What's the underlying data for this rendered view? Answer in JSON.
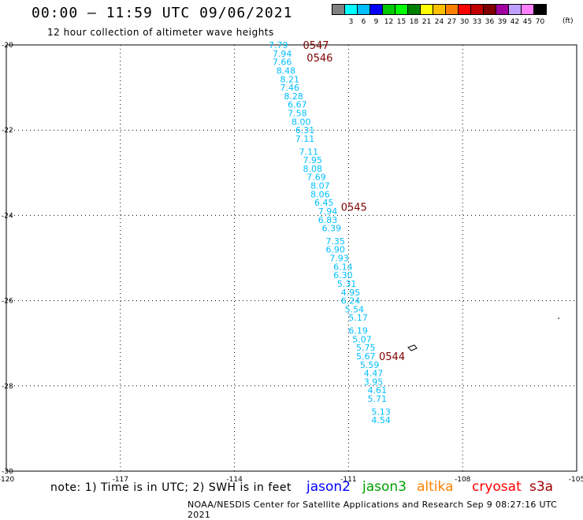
{
  "header": {
    "title": "00:00 – 11:59 UTC 09/06/2021",
    "subtitle": "12 hour collection of altimeter wave heights"
  },
  "legend": {
    "colors": [
      "#808080",
      "#00ffff",
      "#00bfff",
      "#0000ff",
      "#00c800",
      "#00ff00",
      "#008000",
      "#ffff00",
      "#ffc000",
      "#ff8000",
      "#ff0000",
      "#c00000",
      "#800000",
      "#a000a0",
      "#c0a0ff",
      "#ff80ff",
      "#000000"
    ],
    "labels": [
      "",
      "3",
      "6",
      "9",
      "12",
      "15",
      "18",
      "21",
      "24",
      "27",
      "30",
      "33",
      "36",
      "39",
      "42",
      "45",
      "70"
    ],
    "units": "(ft)"
  },
  "axes": {
    "lat_ticks": [
      "-20",
      "-22",
      "-24",
      "-26",
      "-28",
      "-30"
    ],
    "lon_ticks": [
      "-120",
      "-117",
      "-114",
      "-111",
      "-108",
      "-105"
    ]
  },
  "chart_data": {
    "type": "scatter",
    "xlabel": "",
    "ylabel": "",
    "xlim": [
      -120,
      -105
    ],
    "ylim": [
      -30,
      -20
    ],
    "grid": true,
    "pass_times": [
      {
        "label": "0547",
        "lon": -112.2,
        "lat": -20.0
      },
      {
        "label": "0546",
        "lon": -112.1,
        "lat": -20.3
      },
      {
        "label": "0545",
        "lon": -111.2,
        "lat": -23.8
      },
      {
        "label": "0544",
        "lon": -110.2,
        "lat": -27.3
      }
    ],
    "wave_heights": [
      {
        "lon": -113.1,
        "lat": -20.0,
        "value": "7.79"
      },
      {
        "lon": -113.0,
        "lat": -20.2,
        "value": "7.94"
      },
      {
        "lon": -113.0,
        "lat": -20.4,
        "value": "7.66"
      },
      {
        "lon": -112.9,
        "lat": -20.6,
        "value": "8.48"
      },
      {
        "lon": -112.8,
        "lat": -20.8,
        "value": "8.21"
      },
      {
        "lon": -112.8,
        "lat": -21.0,
        "value": "7.46"
      },
      {
        "lon": -112.7,
        "lat": -21.2,
        "value": "8.28"
      },
      {
        "lon": -112.6,
        "lat": -21.4,
        "value": "6.67"
      },
      {
        "lon": -112.6,
        "lat": -21.6,
        "value": "7.58"
      },
      {
        "lon": -112.5,
        "lat": -21.8,
        "value": "8.00"
      },
      {
        "lon": -112.4,
        "lat": -22.0,
        "value": "6.31"
      },
      {
        "lon": -112.4,
        "lat": -22.2,
        "value": "7.11"
      },
      {
        "lon": -112.3,
        "lat": -22.5,
        "value": "7.11"
      },
      {
        "lon": -112.2,
        "lat": -22.7,
        "value": "7.95"
      },
      {
        "lon": -112.2,
        "lat": -22.9,
        "value": "8.08"
      },
      {
        "lon": -112.1,
        "lat": -23.1,
        "value": "7.69"
      },
      {
        "lon": -112.0,
        "lat": -23.3,
        "value": "8.07"
      },
      {
        "lon": -112.0,
        "lat": -23.5,
        "value": "8.06"
      },
      {
        "lon": -111.9,
        "lat": -23.7,
        "value": "6.45"
      },
      {
        "lon": -111.8,
        "lat": -23.9,
        "value": "7.94"
      },
      {
        "lon": -111.8,
        "lat": -24.1,
        "value": "6.83"
      },
      {
        "lon": -111.7,
        "lat": -24.3,
        "value": "6.39"
      },
      {
        "lon": -111.6,
        "lat": -24.6,
        "value": "7.35"
      },
      {
        "lon": -111.6,
        "lat": -24.8,
        "value": "6.90"
      },
      {
        "lon": -111.5,
        "lat": -25.0,
        "value": "7.93"
      },
      {
        "lon": -111.4,
        "lat": -25.2,
        "value": "6.14"
      },
      {
        "lon": -111.4,
        "lat": -25.4,
        "value": "6.30"
      },
      {
        "lon": -111.3,
        "lat": -25.6,
        "value": "5.31"
      },
      {
        "lon": -111.2,
        "lat": -25.8,
        "value": "4.95"
      },
      {
        "lon": -111.2,
        "lat": -26.0,
        "value": "6.24"
      },
      {
        "lon": -111.1,
        "lat": -26.2,
        "value": "5.54"
      },
      {
        "lon": -111.0,
        "lat": -26.4,
        "value": "5.17"
      },
      {
        "lon": -111.0,
        "lat": -26.7,
        "value": "6.19"
      },
      {
        "lon": -110.9,
        "lat": -26.9,
        "value": "5.07"
      },
      {
        "lon": -110.8,
        "lat": -27.1,
        "value": "5.75"
      },
      {
        "lon": -110.8,
        "lat": -27.3,
        "value": "5.67"
      },
      {
        "lon": -110.7,
        "lat": -27.5,
        "value": "5.59"
      },
      {
        "lon": -110.6,
        "lat": -27.7,
        "value": "4.47"
      },
      {
        "lon": -110.6,
        "lat": -27.9,
        "value": "3.95"
      },
      {
        "lon": -110.5,
        "lat": -28.1,
        "value": "4.61"
      },
      {
        "lon": -110.5,
        "lat": -28.3,
        "value": "5.71"
      },
      {
        "lon": -110.4,
        "lat": -28.6,
        "value": "5.13"
      },
      {
        "lon": -110.4,
        "lat": -28.8,
        "value": "4.54"
      }
    ]
  },
  "colors": {
    "pass_label": "#800000",
    "wave_label": "#00bfff",
    "jason2": "#0000ff",
    "jason3": "#00a000",
    "altika": "#ff8000",
    "cryosat": "#ff0000",
    "s3a": "#a00000"
  },
  "footer": {
    "note": "note: 1) Time is in UTC; 2) SWH is in feet",
    "satellites": {
      "jason2": "jason2",
      "jason3": "jason3",
      "altika": "altika",
      "cryosat": "cryosat",
      "s3a": "s3a"
    },
    "credit": "NOAA/NESDIS Center for Satellite Applications and Research    Sep  9 08:27:16 UTC 2021"
  }
}
